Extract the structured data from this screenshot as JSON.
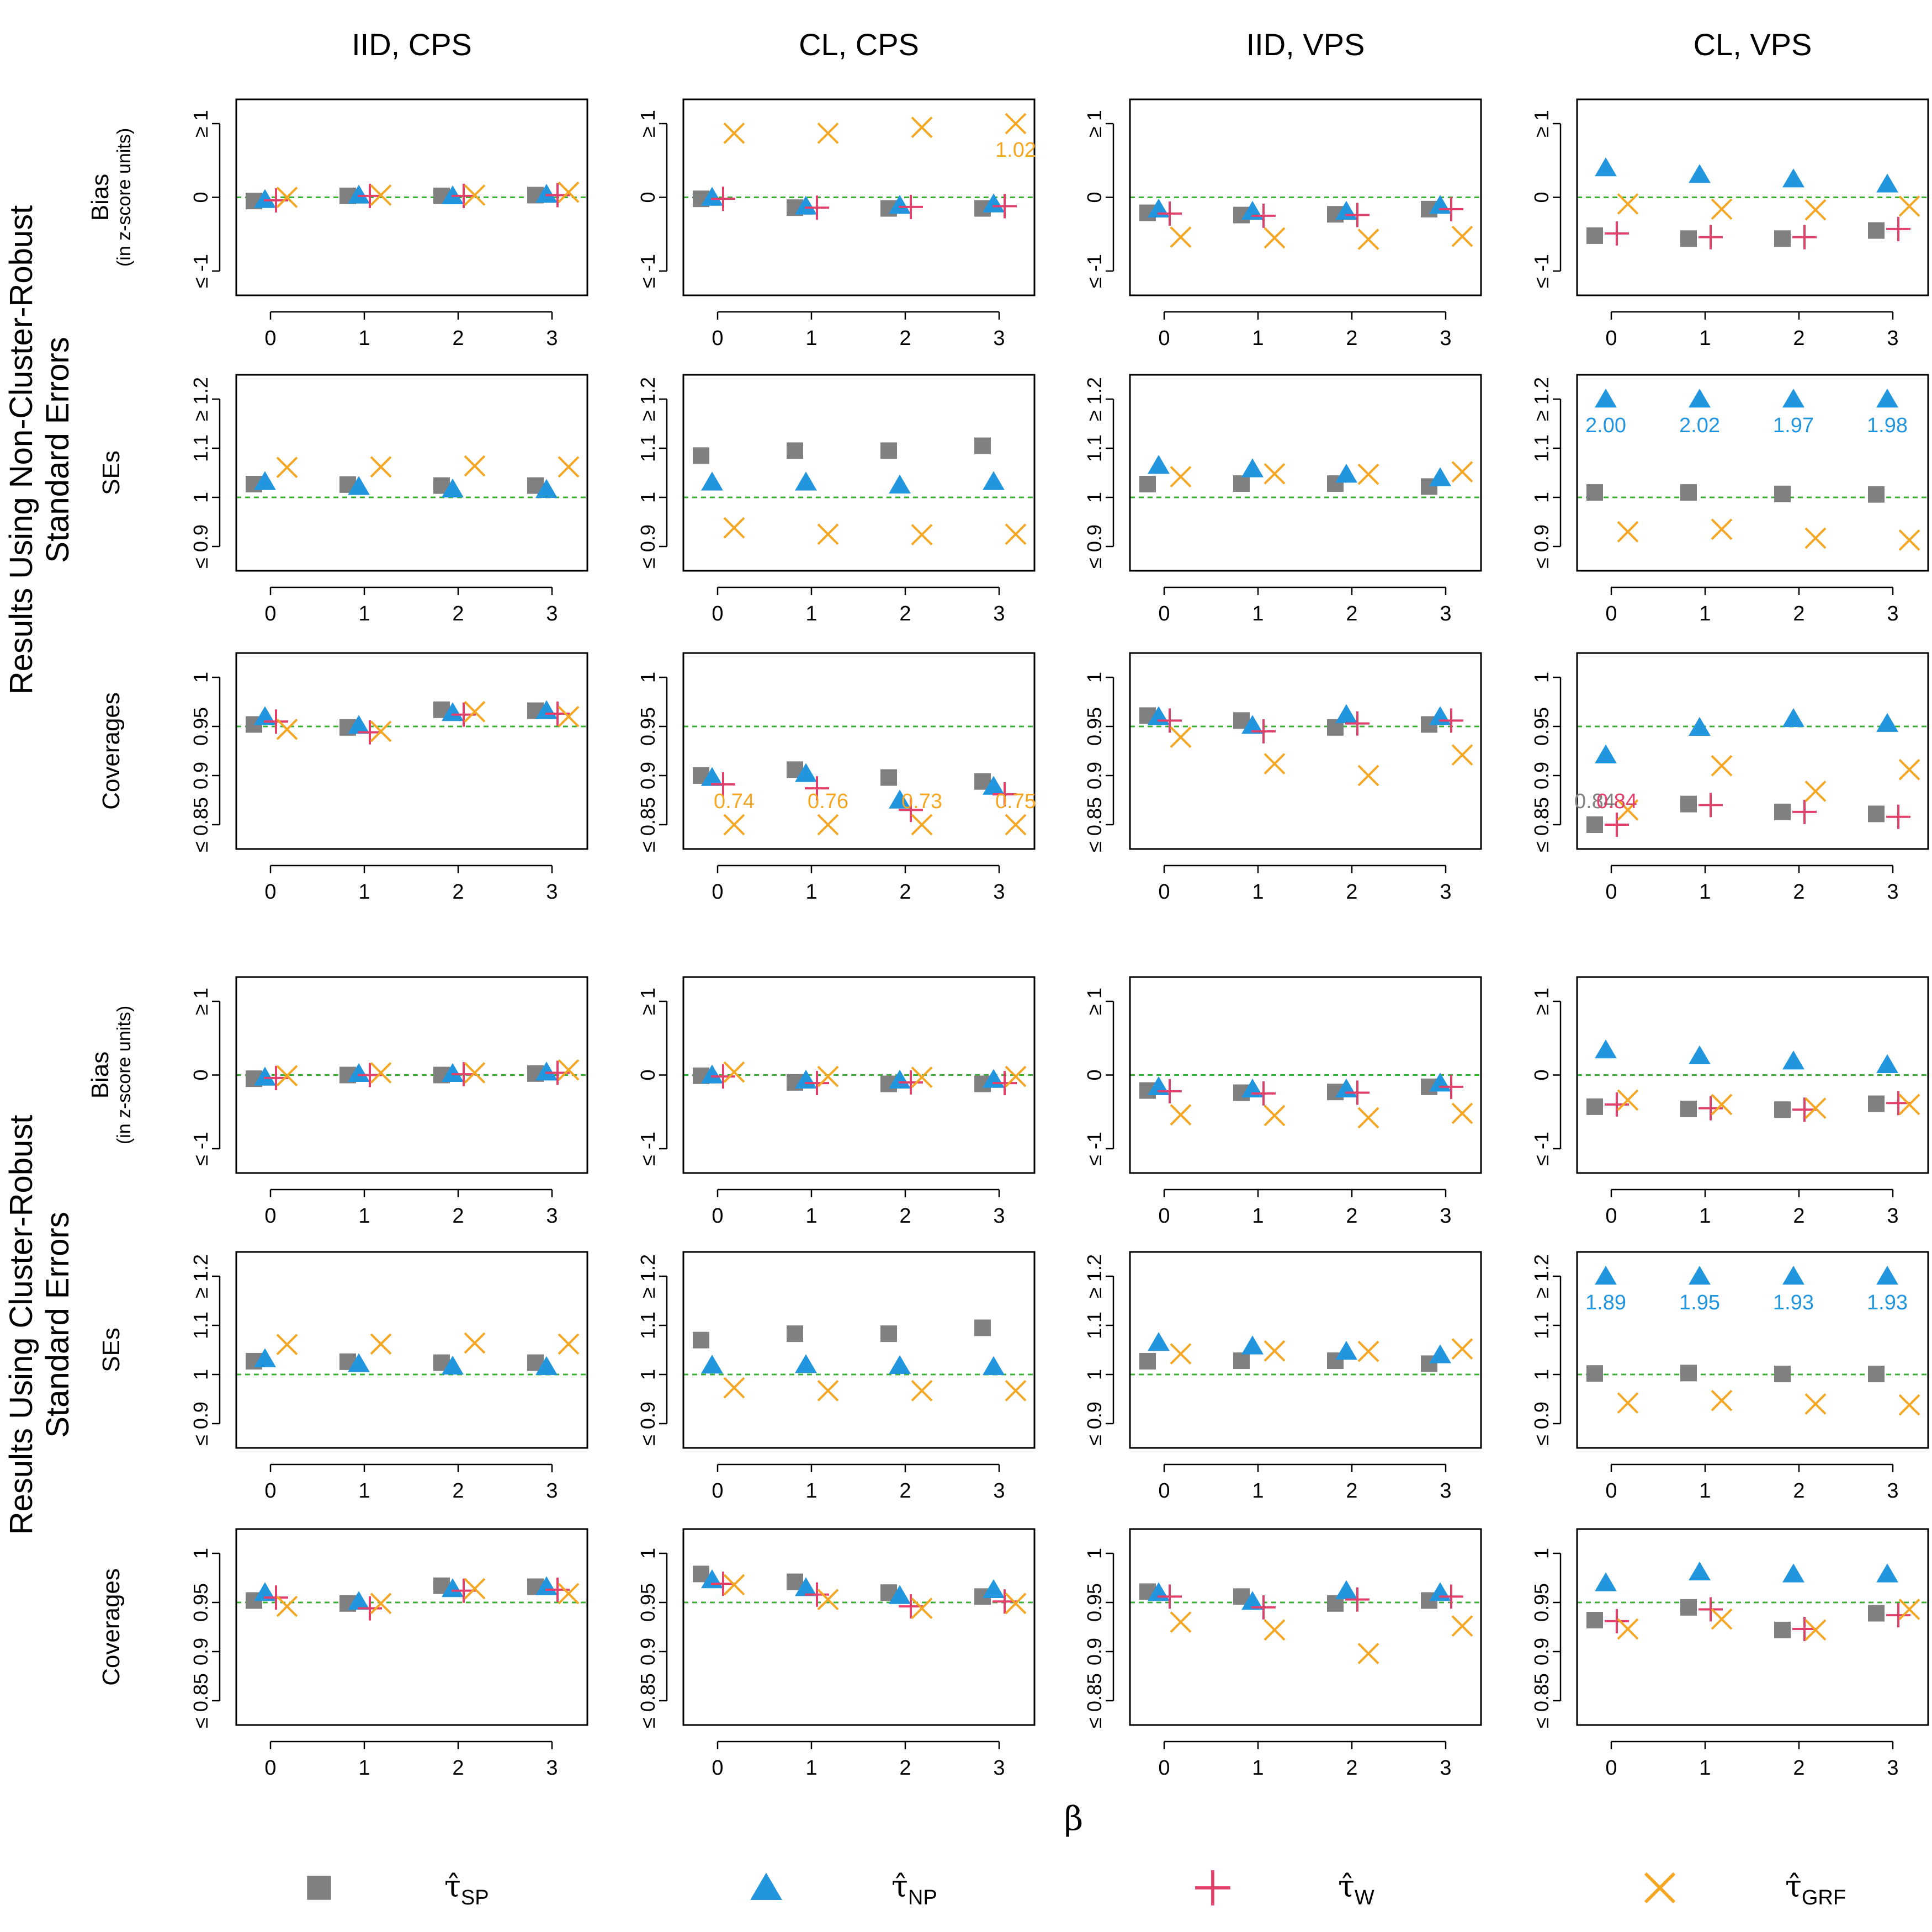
{
  "colors": {
    "sp": "#808080",
    "np": "#2196df",
    "w": "#e0406a",
    "grf": "#f5a623",
    "ref": "#3cb034",
    "axis": "#000000"
  },
  "x_axis_label": "β",
  "x_ticks": [
    "0",
    "1",
    "2",
    "3"
  ],
  "column_titles": [
    "IID, CPS",
    "CL, CPS",
    "IID, VPS",
    "CL, VPS"
  ],
  "group_titles": [
    [
      "Results Using Non-Cluster-Robust",
      "Standard Errors"
    ],
    [
      "Results Using Cluster-Robust",
      "Standard Errors"
    ]
  ],
  "row_labels": {
    "bias": [
      "Bias",
      "(in z-score units)"
    ],
    "ses": [
      "SEs"
    ],
    "cov": [
      "Coverages"
    ]
  },
  "y_ticks": {
    "bias": [
      {
        "v": -1,
        "t": "≤ -1"
      },
      {
        "v": 0,
        "t": "0"
      },
      {
        "v": 1,
        "t": "≥ 1"
      }
    ],
    "ses": [
      {
        "v": 0.9,
        "t": "≤ 0.9"
      },
      {
        "v": 1.0,
        "t": "1"
      },
      {
        "v": 1.1,
        "t": "1.1"
      },
      {
        "v": 1.2,
        "t": "≥ 1.2"
      }
    ],
    "cov": [
      {
        "v": 0.85,
        "t": "≤ 0.85"
      },
      {
        "v": 0.9,
        "t": "0.9"
      },
      {
        "v": 0.95,
        "t": "0.95"
      },
      {
        "v": 1.0,
        "t": "1"
      }
    ]
  },
  "legend": [
    {
      "key": "sp",
      "sub": "SP"
    },
    {
      "key": "np",
      "sub": "NP"
    },
    {
      "key": "w",
      "sub": "W"
    },
    {
      "key": "grf",
      "sub": "GRF"
    }
  ],
  "chart_data": {
    "type": "scatter",
    "x": [
      0,
      1,
      2,
      3
    ],
    "panels": [
      {
        "group": 0,
        "row": "bias",
        "col": 0,
        "ref": 0,
        "ylim": [
          -1,
          1
        ],
        "series": {
          "sp": [
            -0.05,
            0.02,
            0.02,
            0.03
          ],
          "np": [
            -0.03,
            0.03,
            0.02,
            0.04
          ],
          "w": [
            -0.04,
            0.02,
            0.02,
            0.03
          ],
          "grf": [
            0.0,
            0.03,
            0.03,
            0.07
          ]
        },
        "labels": []
      },
      {
        "group": 0,
        "row": "bias",
        "col": 1,
        "ref": 0,
        "ylim": [
          -1,
          1
        ],
        "series": {
          "sp": [
            -0.02,
            -0.14,
            -0.15,
            -0.15
          ],
          "np": [
            0.0,
            -0.12,
            -0.11,
            -0.09
          ],
          "w": [
            -0.02,
            -0.14,
            -0.13,
            -0.12
          ],
          "grf": [
            0.87,
            0.87,
            0.95,
            1.0
          ]
        },
        "labels": [
          {
            "key": "grf",
            "i": 3,
            "text": "1.02"
          }
        ]
      },
      {
        "group": 0,
        "row": "bias",
        "col": 2,
        "ref": 0,
        "ylim": [
          -1,
          1
        ],
        "series": {
          "sp": [
            -0.21,
            -0.24,
            -0.23,
            -0.16
          ],
          "np": [
            -0.16,
            -0.19,
            -0.19,
            -0.11
          ],
          "w": [
            -0.22,
            -0.25,
            -0.24,
            -0.16
          ],
          "grf": [
            -0.54,
            -0.55,
            -0.57,
            -0.53
          ]
        },
        "labels": []
      },
      {
        "group": 0,
        "row": "bias",
        "col": 3,
        "ref": 0,
        "ylim": [
          -1,
          1
        ],
        "series": {
          "sp": [
            -0.52,
            -0.56,
            -0.56,
            -0.45
          ],
          "np": [
            0.4,
            0.31,
            0.25,
            0.18
          ],
          "w": [
            -0.49,
            -0.54,
            -0.54,
            -0.43
          ],
          "grf": [
            -0.09,
            -0.16,
            -0.17,
            -0.12
          ]
        },
        "labels": []
      },
      {
        "group": 0,
        "row": "ses",
        "col": 0,
        "ref": 1.0,
        "ylim": [
          0.9,
          1.2
        ],
        "series": {
          "sp": [
            1.027,
            1.026,
            1.024,
            1.024
          ],
          "np": [
            1.032,
            1.022,
            1.017,
            1.016
          ],
          "grf": [
            1.061,
            1.062,
            1.064,
            1.062
          ]
        },
        "labels": []
      },
      {
        "group": 0,
        "row": "ses",
        "col": 1,
        "ref": 1.0,
        "ylim": [
          0.9,
          1.2
        ],
        "series": {
          "sp": [
            1.085,
            1.095,
            1.095,
            1.105
          ],
          "np": [
            1.031,
            1.031,
            1.025,
            1.032
          ],
          "grf": [
            0.938,
            0.925,
            0.924,
            0.925
          ]
        },
        "labels": []
      },
      {
        "group": 0,
        "row": "ses",
        "col": 2,
        "ref": 1.0,
        "ylim": [
          0.9,
          1.2
        ],
        "series": {
          "sp": [
            1.027,
            1.028,
            1.028,
            1.022
          ],
          "np": [
            1.065,
            1.058,
            1.047,
            1.04
          ],
          "grf": [
            1.042,
            1.048,
            1.047,
            1.052
          ]
        },
        "labels": []
      },
      {
        "group": 0,
        "row": "ses",
        "col": 3,
        "ref": 1.0,
        "ylim": [
          0.9,
          1.2
        ],
        "series": {
          "sp": [
            1.01,
            1.01,
            1.007,
            1.006
          ],
          "np": [
            1.2,
            1.2,
            1.2,
            1.2
          ],
          "grf": [
            0.93,
            0.935,
            0.917,
            0.913
          ]
        },
        "labels": [
          {
            "key": "np",
            "i": 0,
            "text": "2.00"
          },
          {
            "key": "np",
            "i": 1,
            "text": "2.02"
          },
          {
            "key": "np",
            "i": 2,
            "text": "1.97"
          },
          {
            "key": "np",
            "i": 3,
            "text": "1.98"
          }
        ]
      },
      {
        "group": 0,
        "row": "cov",
        "col": 0,
        "ref": 0.95,
        "ylim": [
          0.85,
          1.0
        ],
        "series": {
          "sp": [
            0.952,
            0.949,
            0.967,
            0.966
          ],
          "np": [
            0.96,
            0.951,
            0.964,
            0.966
          ],
          "w": [
            0.955,
            0.944,
            0.962,
            0.963
          ],
          "grf": [
            0.947,
            0.945,
            0.965,
            0.96
          ]
        },
        "labels": []
      },
      {
        "group": 0,
        "row": "cov",
        "col": 1,
        "ref": 0.95,
        "ylim": [
          0.85,
          1.0
        ],
        "series": {
          "sp": [
            0.9,
            0.906,
            0.898,
            0.894
          ],
          "np": [
            0.898,
            0.902,
            0.875,
            0.889
          ],
          "w": [
            0.891,
            0.887,
            0.865,
            0.881
          ],
          "grf": [
            0.85,
            0.85,
            0.85,
            0.85
          ]
        },
        "labels": [
          {
            "key": "grf",
            "i": 0,
            "text": "0.74"
          },
          {
            "key": "grf",
            "i": 1,
            "text": "0.76"
          },
          {
            "key": "grf",
            "i": 2,
            "text": "0.73"
          },
          {
            "key": "grf",
            "i": 3,
            "text": "0.75"
          }
        ]
      },
      {
        "group": 0,
        "row": "cov",
        "col": 2,
        "ref": 0.95,
        "ylim": [
          0.85,
          1.0
        ],
        "series": {
          "sp": [
            0.961,
            0.956,
            0.949,
            0.952
          ],
          "np": [
            0.96,
            0.951,
            0.962,
            0.96
          ],
          "w": [
            0.956,
            0.945,
            0.953,
            0.956
          ],
          "grf": [
            0.939,
            0.912,
            0.9,
            0.921
          ]
        },
        "labels": []
      },
      {
        "group": 0,
        "row": "cov",
        "col": 3,
        "ref": 0.95,
        "ylim": [
          0.85,
          1.0
        ],
        "series": {
          "sp": [
            0.85,
            0.871,
            0.863,
            0.861
          ],
          "np": [
            0.921,
            0.949,
            0.958,
            0.953
          ],
          "w": [
            0.85,
            0.87,
            0.863,
            0.858
          ],
          "grf": [
            0.865,
            0.91,
            0.884,
            0.906
          ]
        },
        "labels": [
          {
            "key": "sp",
            "i": 0,
            "text": "0.84"
          },
          {
            "key": "w",
            "i": 0,
            "text": "0.84"
          }
        ]
      },
      {
        "group": 1,
        "row": "bias",
        "col": 0,
        "ref": 0,
        "ylim": [
          -1,
          1
        ],
        "series": {
          "sp": [
            -0.05,
            0.0,
            0.0,
            0.02
          ],
          "np": [
            -0.03,
            0.02,
            0.02,
            0.04
          ],
          "w": [
            -0.04,
            0.0,
            0.01,
            0.03
          ],
          "grf": [
            -0.01,
            0.03,
            0.03,
            0.07
          ]
        },
        "labels": []
      },
      {
        "group": 1,
        "row": "bias",
        "col": 1,
        "ref": 0,
        "ylim": [
          -1,
          1
        ],
        "series": {
          "sp": [
            -0.01,
            -0.1,
            -0.12,
            -0.12
          ],
          "np": [
            0.0,
            -0.07,
            -0.07,
            -0.06
          ],
          "w": [
            -0.02,
            -0.11,
            -0.1,
            -0.11
          ],
          "grf": [
            0.04,
            -0.02,
            -0.03,
            -0.02
          ]
        },
        "labels": []
      },
      {
        "group": 1,
        "row": "bias",
        "col": 2,
        "ref": 0,
        "ylim": [
          -1,
          1
        ],
        "series": {
          "sp": [
            -0.21,
            -0.24,
            -0.23,
            -0.16
          ],
          "np": [
            -0.16,
            -0.19,
            -0.19,
            -0.11
          ],
          "w": [
            -0.22,
            -0.25,
            -0.24,
            -0.16
          ],
          "grf": [
            -0.54,
            -0.55,
            -0.58,
            -0.52
          ]
        },
        "labels": []
      },
      {
        "group": 1,
        "row": "bias",
        "col": 3,
        "ref": 0,
        "ylim": [
          -1,
          1
        ],
        "series": {
          "sp": [
            -0.43,
            -0.46,
            -0.47,
            -0.39
          ],
          "np": [
            0.34,
            0.26,
            0.19,
            0.14
          ],
          "w": [
            -0.4,
            -0.45,
            -0.47,
            -0.38
          ],
          "grf": [
            -0.34,
            -0.4,
            -0.45,
            -0.4
          ]
        },
        "labels": []
      },
      {
        "group": 1,
        "row": "ses",
        "col": 0,
        "ref": 1.0,
        "ylim": [
          0.9,
          1.2
        ],
        "series": {
          "sp": [
            1.027,
            1.026,
            1.024,
            1.024
          ],
          "np": [
            1.032,
            1.022,
            1.017,
            1.016
          ],
          "grf": [
            1.061,
            1.062,
            1.064,
            1.062
          ]
        },
        "labels": []
      },
      {
        "group": 1,
        "row": "ses",
        "col": 1,
        "ref": 1.0,
        "ylim": [
          0.9,
          1.2
        ],
        "series": {
          "sp": [
            1.07,
            1.083,
            1.083,
            1.095
          ],
          "np": [
            1.019,
            1.02,
            1.018,
            1.016
          ],
          "grf": [
            0.973,
            0.967,
            0.967,
            0.967
          ]
        },
        "labels": []
      },
      {
        "group": 1,
        "row": "ses",
        "col": 2,
        "ref": 1.0,
        "ylim": [
          0.9,
          1.2
        ],
        "series": {
          "sp": [
            1.027,
            1.028,
            1.028,
            1.022
          ],
          "np": [
            1.065,
            1.058,
            1.047,
            1.04
          ],
          "grf": [
            1.042,
            1.048,
            1.047,
            1.052
          ]
        },
        "labels": []
      },
      {
        "group": 1,
        "row": "ses",
        "col": 3,
        "ref": 1.0,
        "ylim": [
          0.9,
          1.2
        ],
        "series": {
          "sp": [
            1.002,
            1.003,
            1.001,
            1.001
          ],
          "np": [
            1.2,
            1.2,
            1.2,
            1.2
          ],
          "grf": [
            0.942,
            0.947,
            0.94,
            0.938
          ]
        },
        "labels": [
          {
            "key": "np",
            "i": 0,
            "text": "1.89"
          },
          {
            "key": "np",
            "i": 1,
            "text": "1.95"
          },
          {
            "key": "np",
            "i": 2,
            "text": "1.93"
          },
          {
            "key": "np",
            "i": 3,
            "text": "1.93"
          }
        ]
      },
      {
        "group": 1,
        "row": "cov",
        "col": 0,
        "ref": 0.95,
        "ylim": [
          0.85,
          1.0
        ],
        "series": {
          "sp": [
            0.952,
            0.949,
            0.967,
            0.966
          ],
          "np": [
            0.96,
            0.951,
            0.964,
            0.966
          ],
          "w": [
            0.955,
            0.944,
            0.962,
            0.963
          ],
          "grf": [
            0.946,
            0.949,
            0.964,
            0.959
          ]
        },
        "labels": []
      },
      {
        "group": 1,
        "row": "cov",
        "col": 1,
        "ref": 0.95,
        "ylim": [
          0.85,
          1.0
        ],
        "series": {
          "sp": [
            0.979,
            0.971,
            0.96,
            0.956
          ],
          "np": [
            0.973,
            0.965,
            0.957,
            0.963
          ],
          "w": [
            0.969,
            0.958,
            0.946,
            0.951
          ],
          "grf": [
            0.968,
            0.953,
            0.944,
            0.949
          ]
        },
        "labels": []
      },
      {
        "group": 1,
        "row": "cov",
        "col": 2,
        "ref": 0.95,
        "ylim": [
          0.85,
          1.0
        ],
        "series": {
          "sp": [
            0.961,
            0.956,
            0.949,
            0.952
          ],
          "np": [
            0.96,
            0.951,
            0.962,
            0.96
          ],
          "w": [
            0.956,
            0.945,
            0.953,
            0.956
          ],
          "grf": [
            0.93,
            0.922,
            0.898,
            0.926
          ]
        },
        "labels": []
      },
      {
        "group": 1,
        "row": "cov",
        "col": 3,
        "ref": 0.95,
        "ylim": [
          0.85,
          1.0
        ],
        "series": {
          "sp": [
            0.932,
            0.945,
            0.922,
            0.939
          ],
          "np": [
            0.97,
            0.981,
            0.979,
            0.979
          ],
          "w": [
            0.931,
            0.943,
            0.923,
            0.937
          ],
          "grf": [
            0.923,
            0.933,
            0.922,
            0.943
          ]
        },
        "labels": []
      }
    ]
  }
}
